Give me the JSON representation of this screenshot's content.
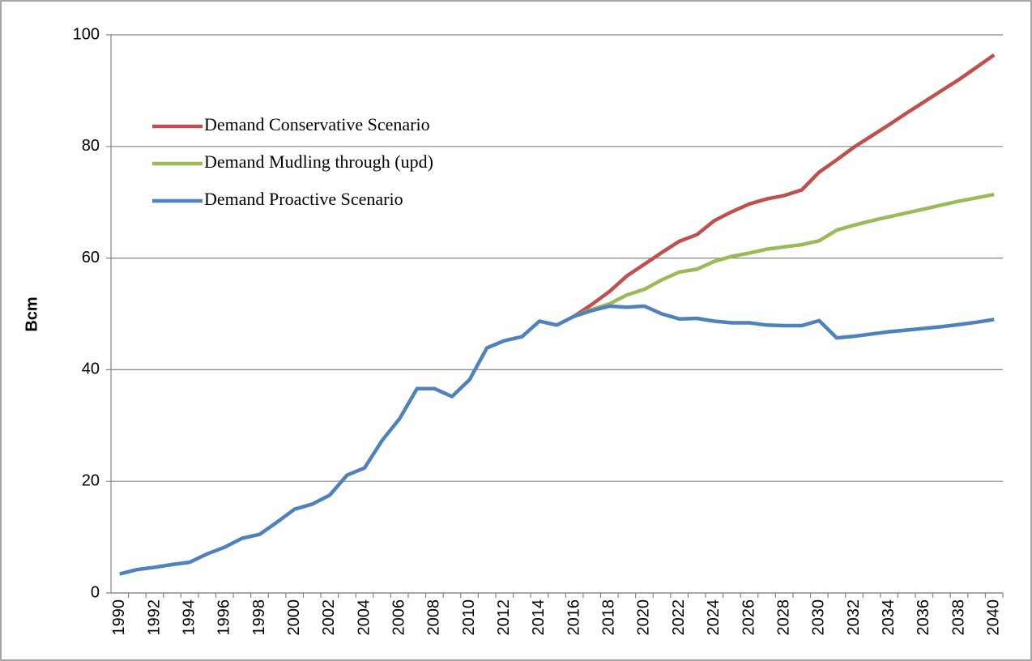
{
  "chart_data": {
    "type": "line",
    "ylabel": "Bcm",
    "categories": [
      "1990",
      null,
      "1992",
      null,
      "1994",
      null,
      "1996",
      null,
      "1998",
      null,
      "2000",
      null,
      "2002",
      null,
      "2004",
      null,
      "2006",
      null,
      "2008",
      null,
      "2010",
      null,
      "2012",
      null,
      "2014",
      null,
      "2016",
      null,
      "2018",
      null,
      "2020",
      null,
      "2022",
      null,
      "2024",
      null,
      "2026",
      null,
      "2028",
      null,
      "2030",
      null,
      "2032",
      null,
      "2034",
      null,
      "2036",
      null,
      "2038",
      null,
      "2040"
    ],
    "series": [
      {
        "name": "Demand Conservative Scenario",
        "color": "#c0504d",
        "values": [
          null,
          null,
          null,
          null,
          null,
          null,
          null,
          null,
          null,
          null,
          null,
          null,
          null,
          null,
          null,
          null,
          null,
          null,
          null,
          null,
          null,
          null,
          null,
          null,
          null,
          null,
          49.6,
          51.7,
          54.0,
          56.8,
          58.9,
          61.0,
          63.0,
          64.2,
          66.7,
          68.3,
          69.7,
          70.6,
          71.2,
          72.2,
          75.4,
          77.6,
          79.9,
          81.9,
          83.9,
          86.0,
          88.0,
          90.0,
          92.0,
          94.2,
          96.4
        ]
      },
      {
        "name": "Demand Mudling through (upd)",
        "color": "#9bbb59",
        "values": [
          null,
          null,
          null,
          null,
          null,
          null,
          null,
          null,
          null,
          null,
          null,
          null,
          null,
          null,
          null,
          null,
          null,
          null,
          null,
          null,
          null,
          null,
          null,
          null,
          null,
          null,
          49.6,
          50.8,
          51.8,
          53.4,
          54.4,
          56.1,
          57.5,
          58.0,
          59.4,
          60.3,
          60.9,
          61.6,
          62.0,
          62.4,
          63.1,
          65.0,
          65.9,
          66.7,
          67.4,
          68.1,
          68.8,
          69.5,
          70.2,
          70.8,
          71.4
        ]
      },
      {
        "name": "Demand Proactive Scenario",
        "color": "#4f81bd",
        "values": [
          3.4,
          4.2,
          4.6,
          5.1,
          5.5,
          7.0,
          8.2,
          9.8,
          10.5,
          12.7,
          15.0,
          15.9,
          17.5,
          21.1,
          22.4,
          27.3,
          31.2,
          36.6,
          36.6,
          35.2,
          38.2,
          43.9,
          45.2,
          45.9,
          48.7,
          48.0,
          49.6,
          50.6,
          51.4,
          51.2,
          51.4,
          50.0,
          49.1,
          49.2,
          48.7,
          48.4,
          48.4,
          48.0,
          47.9,
          47.9,
          48.8,
          45.7,
          46.0,
          46.4,
          46.8,
          47.1,
          47.4,
          47.7,
          48.1,
          48.5,
          49.0
        ]
      }
    ],
    "ylim": [
      0,
      100
    ],
    "yticks": [
      0,
      20,
      40,
      60,
      80,
      100
    ],
    "grid": true,
    "legend": "upper left"
  }
}
